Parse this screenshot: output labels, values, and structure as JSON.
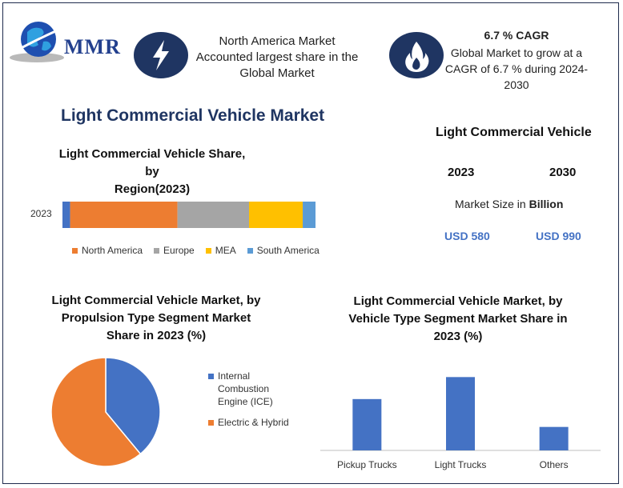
{
  "header": {
    "logo_text": "MMR",
    "box1_lines": [
      "North America Market",
      "Accounted largest share in the",
      "Global Market"
    ],
    "box2_title": "6.7 % CAGR",
    "box2_lines": [
      "Global Market to grow at a",
      "CAGR of 6.7 % during 2024-",
      "2030"
    ],
    "icons": [
      "globe-icon",
      "lightning-icon",
      "flame-icon"
    ]
  },
  "main_title": "Light Commercial Vehicle Market",
  "market_size": {
    "title": "Light Commercial Vehicle",
    "years": [
      "2023",
      "2030"
    ],
    "label_prefix": "Market Size in ",
    "label_bold": "Billion",
    "values": [
      "USD 580",
      "USD 990"
    ]
  },
  "chart_data": [
    {
      "type": "bar",
      "orientation": "horizontal-stacked",
      "title": "Light Commercial Vehicle Share, by Region(2023)",
      "title_lines": [
        "Light Commercial Vehicle Share, by",
        "Region(2023)"
      ],
      "categories": [
        "2023"
      ],
      "series": [
        {
          "name": "North America",
          "values": [
            42
          ],
          "color": "#ed7d31"
        },
        {
          "name": "Europe",
          "values": [
            28
          ],
          "color": "#a5a5a5"
        },
        {
          "name": "MEA",
          "values": [
            21
          ],
          "color": "#ffc000"
        },
        {
          "name": "South America",
          "values": [
            5
          ],
          "color": "#5b9bd5"
        },
        {
          "name": "",
          "values": [
            3
          ],
          "color": "#4472c4"
        }
      ],
      "legend_position": "bottom"
    },
    {
      "type": "pie",
      "title": "Light Commercial Vehicle Market, by Propulsion Type Segment Market Share in 2023 (%)",
      "title_lines": [
        "Light Commercial Vehicle Market, by",
        "Propulsion Type Segment Market",
        "Share in 2023 (%)"
      ],
      "labels": [
        "Internal Combustion Engine (ICE)",
        "Electric & Hybrid"
      ],
      "legend_lines": [
        [
          "Internal",
          "Combustion",
          "Engine (ICE)"
        ],
        [
          "Electric & Hybrid"
        ]
      ],
      "values": [
        39,
        61
      ],
      "colors": [
        "#4472c4",
        "#ed7d31"
      ],
      "legend_position": "right"
    },
    {
      "type": "bar",
      "title": "Light Commercial Vehicle Market, by Vehicle Type Segment Market Share in 2023 (%)",
      "title_lines": [
        "Light Commercial Vehicle Market, by",
        "Vehicle Type Segment Market Share in",
        "2023 (%)"
      ],
      "categories": [
        "Pickup Trucks",
        "Light Trucks",
        "Others"
      ],
      "values": [
        35,
        50,
        16
      ],
      "ylim": [
        0,
        60
      ],
      "color": "#4472c4"
    }
  ]
}
